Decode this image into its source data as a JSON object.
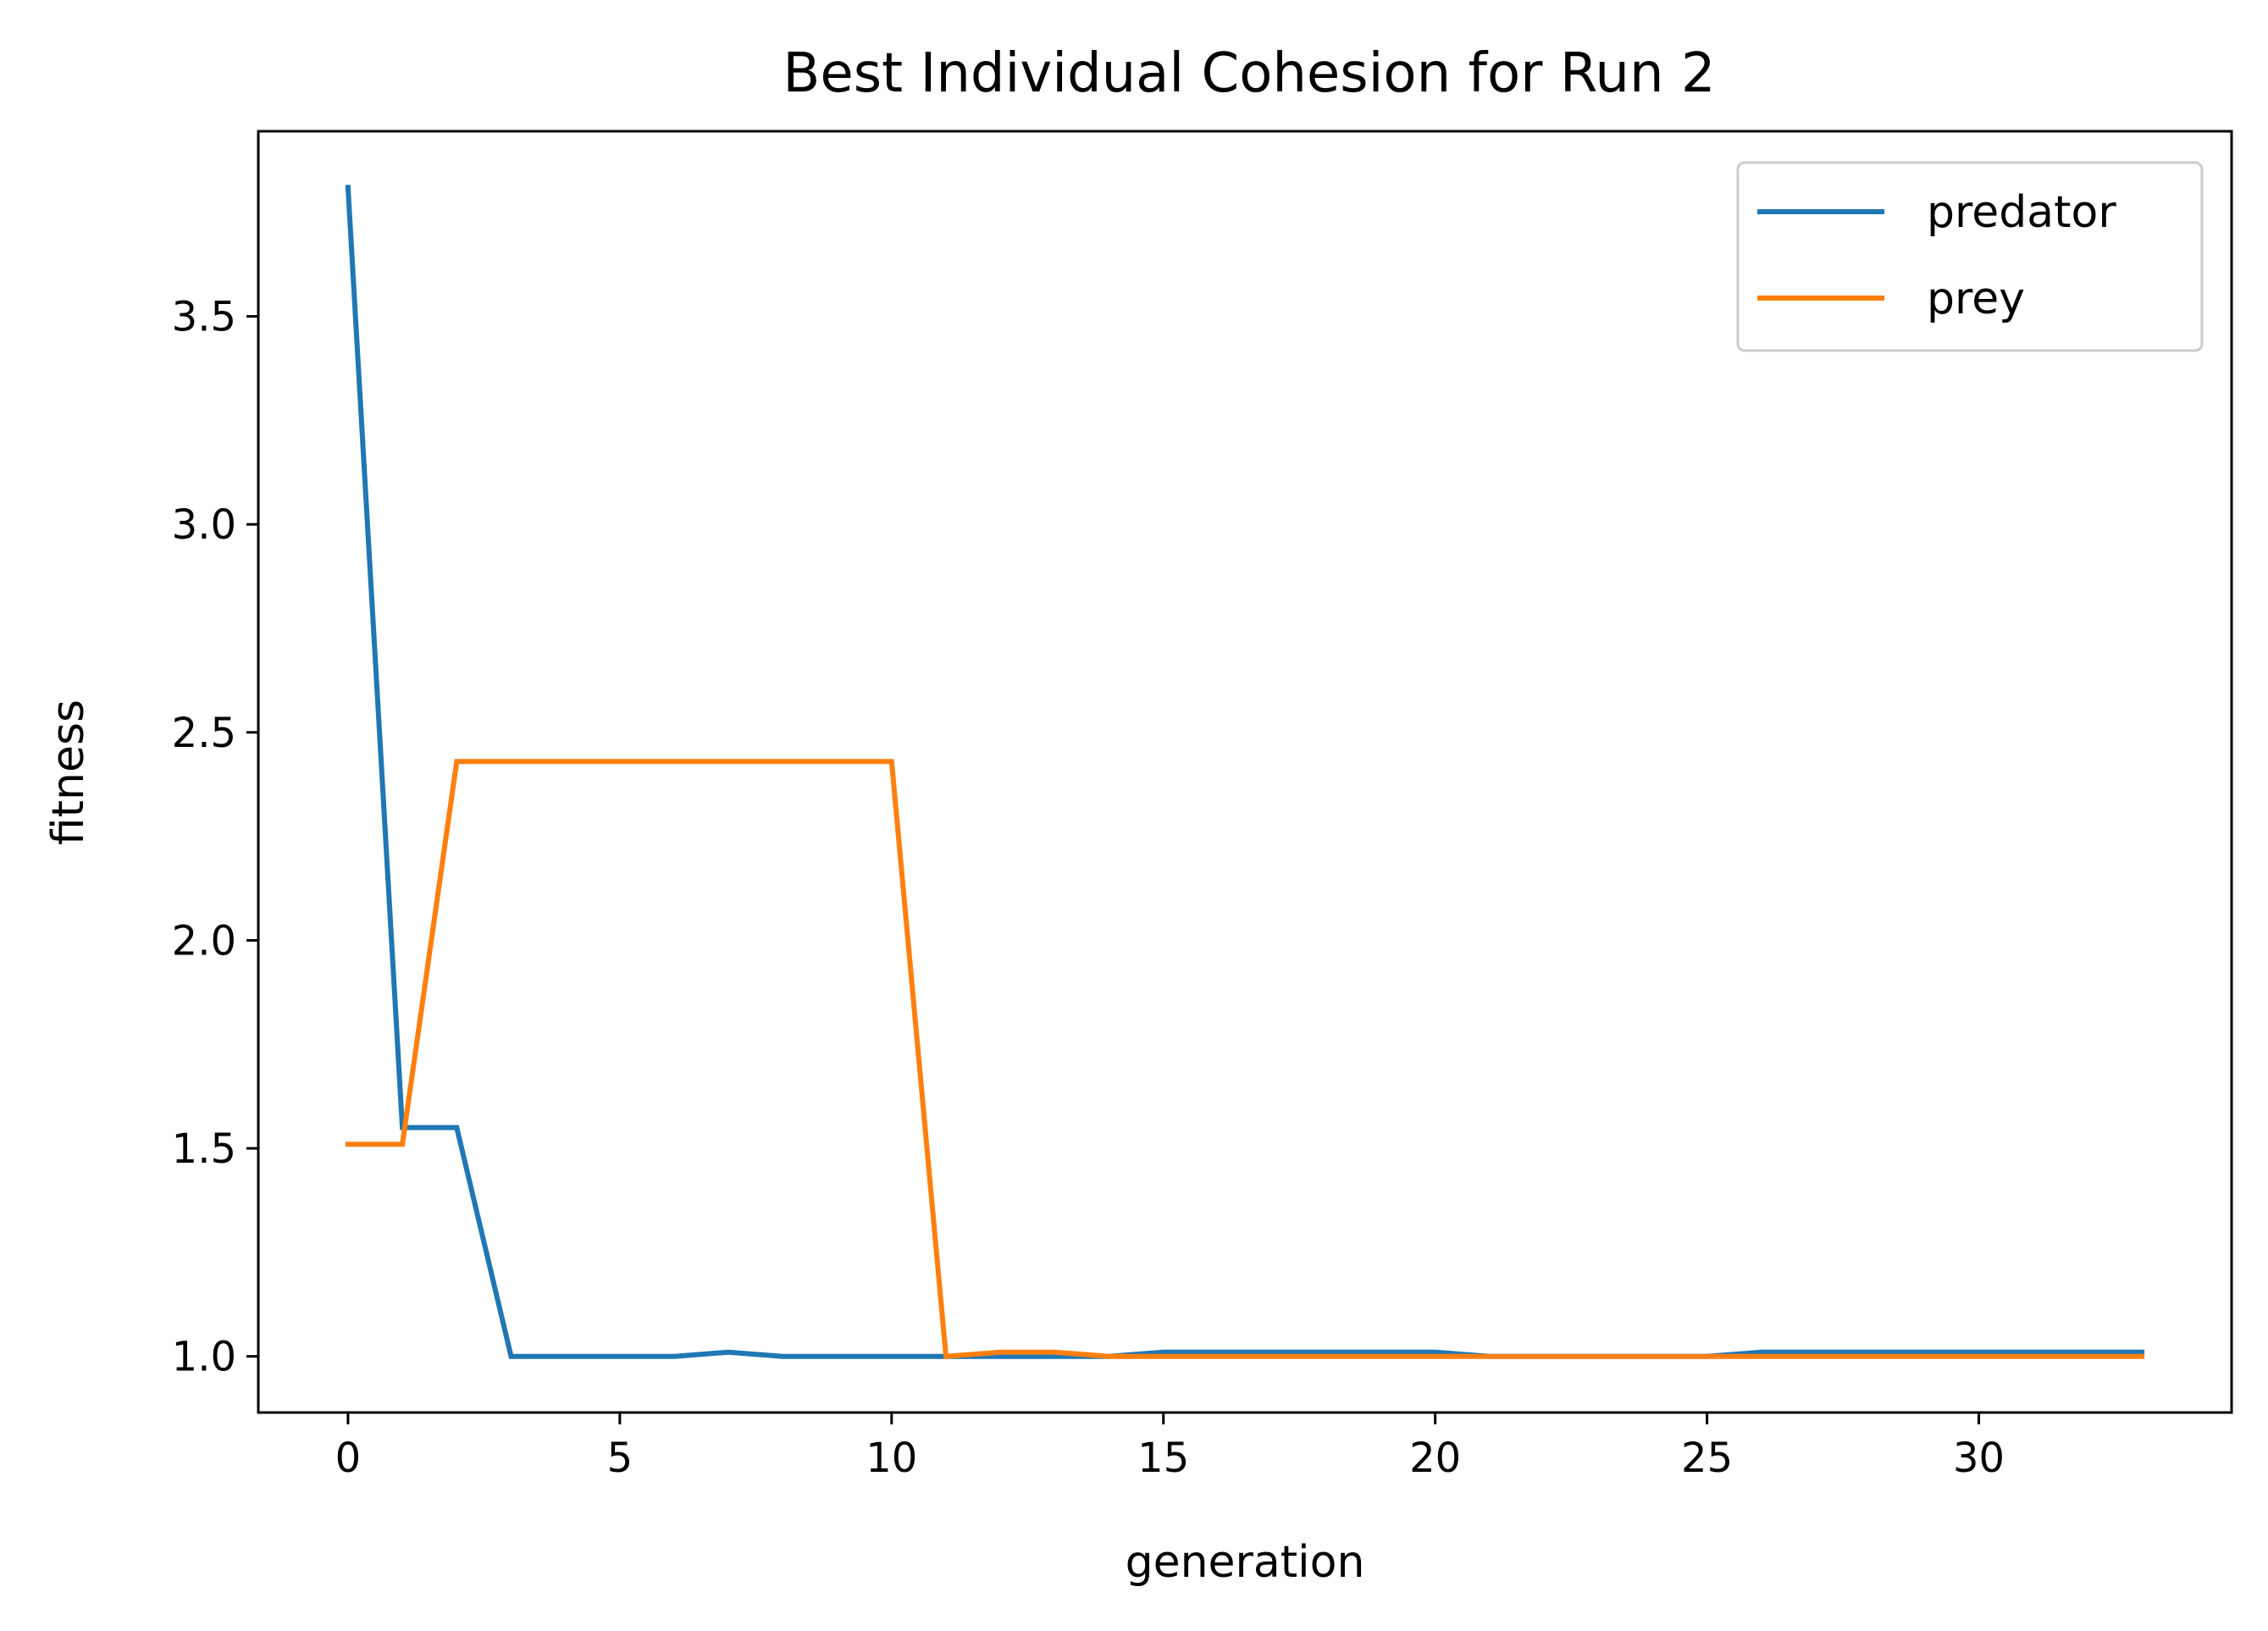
{
  "chart_data": {
    "type": "line",
    "title": "Best Individual Cohesion for Run 2",
    "xlabel": "generation",
    "ylabel": "fitness",
    "xlim": [
      -1.65,
      34.65
    ],
    "ylim": [
      0.865,
      3.945
    ],
    "xticks": [
      0,
      5,
      10,
      15,
      20,
      25,
      30
    ],
    "xtick_labels": [
      "0",
      "5",
      "10",
      "15",
      "20",
      "25",
      "30"
    ],
    "yticks": [
      1.0,
      1.5,
      2.0,
      2.5,
      3.0,
      3.5
    ],
    "ytick_labels": [
      "1.0",
      "1.5",
      "2.0",
      "2.5",
      "3.0",
      "3.5"
    ],
    "grid": false,
    "legend_position": "top-right",
    "x": [
      0,
      1,
      2,
      3,
      4,
      5,
      6,
      7,
      8,
      9,
      10,
      11,
      12,
      13,
      14,
      15,
      16,
      17,
      18,
      19,
      20,
      21,
      22,
      23,
      24,
      25,
      26,
      27,
      28,
      29,
      30,
      31,
      32,
      33
    ],
    "series": [
      {
        "name": "predator",
        "color": "#1f77b4",
        "values": [
          3.81,
          1.55,
          1.55,
          1.0,
          1.0,
          1.0,
          1.0,
          1.01,
          1.0,
          1.0,
          1.0,
          1.0,
          1.0,
          1.0,
          1.0,
          1.01,
          1.01,
          1.01,
          1.01,
          1.01,
          1.01,
          1.0,
          1.0,
          1.0,
          1.0,
          1.0,
          1.01,
          1.01,
          1.01,
          1.01,
          1.01,
          1.01,
          1.01,
          1.01
        ]
      },
      {
        "name": "prey",
        "color": "#ff7f0e",
        "values": [
          1.51,
          1.51,
          2.43,
          2.43,
          2.43,
          2.43,
          2.43,
          2.43,
          2.43,
          2.43,
          2.43,
          1.0,
          1.01,
          1.01,
          1.0,
          1.0,
          1.0,
          1.0,
          1.0,
          1.0,
          1.0,
          1.0,
          1.0,
          1.0,
          1.0,
          1.0,
          1.0,
          1.0,
          1.0,
          1.0,
          1.0,
          1.0,
          1.0,
          1.0
        ]
      }
    ]
  }
}
